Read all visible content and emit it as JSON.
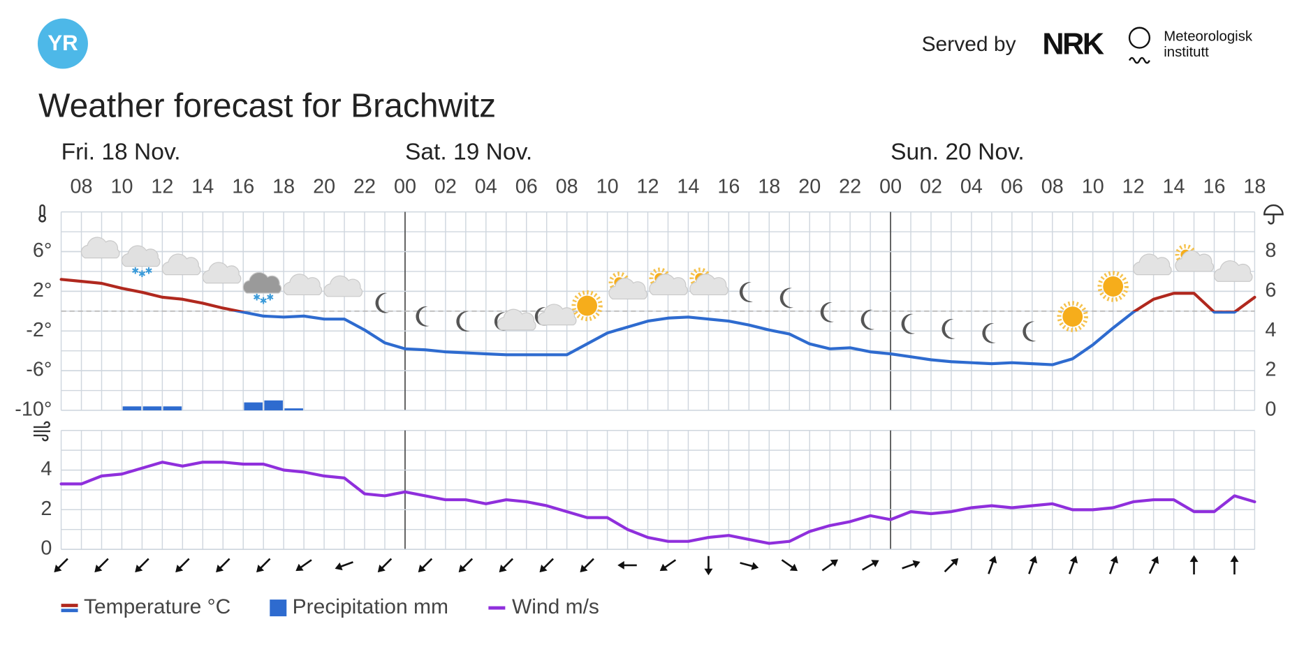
{
  "header": {
    "logo": "YR",
    "served_by": "Served by",
    "nrk": "NRK",
    "met_line1": "Meteorologisk",
    "met_line2": "institutt",
    "title": "Weather forecast for Brachwitz"
  },
  "chart_data": [
    {
      "type": "line",
      "days": [
        "Fri. 18 Nov.",
        "Sat. 19 Nov.",
        "Sun. 20 Nov."
      ],
      "categories": [
        null,
        "08",
        null,
        "10",
        null,
        "12",
        null,
        "14",
        null,
        "16",
        null,
        "18",
        null,
        "20",
        null,
        "22",
        null,
        "00",
        null,
        "02",
        null,
        "04",
        null,
        "06",
        null,
        "08",
        null,
        "10",
        null,
        "12",
        null,
        "14",
        null,
        "16",
        null,
        "18",
        null,
        "20",
        null,
        "22",
        null,
        "00",
        null,
        "02",
        null,
        "04",
        null,
        "06",
        null,
        "08",
        null,
        "10",
        null,
        "12",
        null,
        "14",
        null,
        "16",
        null,
        "18"
      ],
      "ylim": [
        -10,
        10
      ],
      "yticks": [
        {
          "value": -10,
          "label": "-10°"
        },
        {
          "value": -6,
          "label": "-6°"
        },
        {
          "value": -2,
          "label": "-2°"
        },
        {
          "value": 2,
          "label": "2°"
        },
        {
          "value": 6,
          "label": "6°"
        }
      ],
      "y2lim": [
        0,
        10
      ],
      "y2ticks": [
        0,
        2,
        4,
        6,
        8
      ],
      "grid": true,
      "series": [
        {
          "name": "Temperature °C",
          "type": "line",
          "color": "#b0281e",
          "color_below_zero": "#2e6bcf",
          "values": [
            3.2,
            3.0,
            2.8,
            2.3,
            1.9,
            1.4,
            1.2,
            0.8,
            0.3,
            -0.1,
            -0.5,
            -0.6,
            -0.5,
            -0.8,
            -0.8,
            -1.9,
            -3.2,
            -3.8,
            -3.9,
            -4.1,
            -4.2,
            -4.3,
            -4.4,
            -4.4,
            -4.4,
            -4.4,
            -3.3,
            -2.2,
            -1.6,
            -1.0,
            -0.7,
            -0.6,
            -0.8,
            -1.0,
            -1.4,
            -1.9,
            -2.3,
            -3.3,
            -3.8,
            -3.7,
            -4.1,
            -4.3,
            -4.6,
            -4.9,
            -5.1,
            -5.2,
            -5.3,
            -5.2,
            -5.3,
            -5.4,
            -4.8,
            -3.4,
            -1.7,
            -0.1,
            1.2,
            1.8,
            1.8,
            -0.1,
            -0.1,
            1.4
          ]
        },
        {
          "name": "Precipitation mm",
          "type": "bar",
          "axis": "y2",
          "color": "#2e6bcf",
          "values": [
            0,
            0,
            0,
            0.2,
            0.2,
            0.2,
            0,
            0,
            0,
            0.4,
            0.5,
            0.1,
            0,
            0,
            0,
            0,
            0,
            0,
            0,
            0,
            0,
            0,
            0,
            0,
            0,
            0,
            0,
            0,
            0,
            0,
            0,
            0,
            0,
            0,
            0,
            0,
            0,
            0,
            0,
            0,
            0,
            0,
            0,
            0,
            0,
            0,
            0,
            0,
            0,
            0,
            0,
            0,
            0,
            0,
            0,
            0,
            0,
            0,
            0,
            0
          ]
        }
      ]
    },
    {
      "type": "line",
      "ylim": [
        0,
        6
      ],
      "yticks": [
        0,
        2,
        4
      ],
      "grid": true,
      "series": [
        {
          "name": "Wind m/s",
          "type": "line",
          "color": "#8f2fdc",
          "values": [
            3.3,
            3.3,
            3.7,
            3.8,
            4.1,
            4.4,
            4.2,
            4.4,
            4.4,
            4.3,
            4.3,
            4.0,
            3.9,
            3.7,
            3.6,
            2.8,
            2.7,
            2.9,
            2.7,
            2.5,
            2.5,
            2.3,
            2.5,
            2.4,
            2.2,
            1.9,
            1.6,
            1.6,
            1.0,
            0.6,
            0.4,
            0.4,
            0.6,
            0.7,
            0.5,
            0.3,
            0.4,
            0.9,
            1.2,
            1.4,
            1.7,
            1.5,
            1.9,
            1.8,
            1.9,
            2.1,
            2.2,
            2.1,
            2.2,
            2.3,
            2.0,
            2.0,
            2.1,
            2.4,
            2.5,
            2.5,
            1.9,
            1.9,
            2.7,
            2.4
          ]
        }
      ],
      "wind_direction": [
        225,
        225,
        225,
        225,
        225,
        225,
        235,
        250,
        225,
        225,
        225,
        225,
        225,
        225,
        270,
        235,
        180,
        105,
        125,
        55,
        60,
        70,
        45,
        20,
        20,
        20,
        20,
        25,
        0,
        0
      ]
    }
  ]
}
